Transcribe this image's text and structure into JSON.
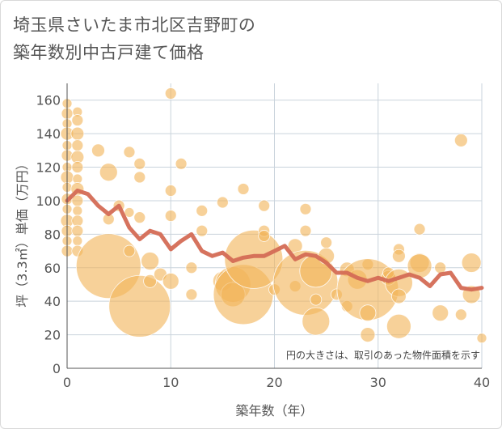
{
  "title": {
    "line1": "埼玉県さいたま市北区吉野町の",
    "line2": "築年数別中古戸建て価格"
  },
  "colors": {
    "bubble": "#f2b45a",
    "line": "#d46b55",
    "grid": "#c9d3dc",
    "text": "#555555"
  },
  "chart_data": {
    "type": "scatter",
    "xlabel": "築年数（年）",
    "ylabel": "坪（3.3㎡）単価（万円）",
    "xlim": [
      0,
      40
    ],
    "ylim": [
      0,
      170
    ],
    "xticks": [
      0,
      10,
      20,
      30,
      40
    ],
    "yticks": [
      0,
      20,
      40,
      60,
      80,
      100,
      120,
      140,
      160
    ],
    "grid": true,
    "annotation": "円の大きさは、取引のあった物件面積を示す",
    "series": [
      {
        "kind": "bubble",
        "points": [
          {
            "x": 0,
            "y": 158,
            "s": 6
          },
          {
            "x": 0,
            "y": 152,
            "s": 7
          },
          {
            "x": 0,
            "y": 146,
            "s": 6
          },
          {
            "x": 0,
            "y": 140,
            "s": 8
          },
          {
            "x": 0,
            "y": 133,
            "s": 6
          },
          {
            "x": 0,
            "y": 127,
            "s": 7
          },
          {
            "x": 0,
            "y": 120,
            "s": 6
          },
          {
            "x": 0,
            "y": 114,
            "s": 8
          },
          {
            "x": 0,
            "y": 108,
            "s": 6
          },
          {
            "x": 0,
            "y": 101,
            "s": 7
          },
          {
            "x": 0,
            "y": 95,
            "s": 6
          },
          {
            "x": 0,
            "y": 88,
            "s": 8
          },
          {
            "x": 0,
            "y": 82,
            "s": 7
          },
          {
            "x": 0,
            "y": 76,
            "s": 6
          },
          {
            "x": 0,
            "y": 70,
            "s": 7
          },
          {
            "x": 1,
            "y": 153,
            "s": 6
          },
          {
            "x": 1,
            "y": 148,
            "s": 7
          },
          {
            "x": 1,
            "y": 140,
            "s": 8
          },
          {
            "x": 1,
            "y": 133,
            "s": 7
          },
          {
            "x": 1,
            "y": 126,
            "s": 8
          },
          {
            "x": 1,
            "y": 120,
            "s": 7
          },
          {
            "x": 1,
            "y": 113,
            "s": 6
          },
          {
            "x": 1,
            "y": 107,
            "s": 8
          },
          {
            "x": 1,
            "y": 100,
            "s": 7
          },
          {
            "x": 1,
            "y": 94,
            "s": 6
          },
          {
            "x": 1,
            "y": 88,
            "s": 7
          },
          {
            "x": 1,
            "y": 82,
            "s": 7
          },
          {
            "x": 1,
            "y": 76,
            "s": 6
          },
          {
            "x": 1,
            "y": 70,
            "s": 7
          },
          {
            "x": 3,
            "y": 130,
            "s": 8
          },
          {
            "x": 4,
            "y": 117,
            "s": 11
          },
          {
            "x": 4,
            "y": 89,
            "s": 7
          },
          {
            "x": 4,
            "y": 61,
            "s": 40
          },
          {
            "x": 5,
            "y": 97,
            "s": 7
          },
          {
            "x": 6,
            "y": 129,
            "s": 7
          },
          {
            "x": 6,
            "y": 93,
            "s": 6
          },
          {
            "x": 6,
            "y": 70,
            "s": 7
          },
          {
            "x": 7,
            "y": 122,
            "s": 7
          },
          {
            "x": 7,
            "y": 114,
            "s": 7
          },
          {
            "x": 7,
            "y": 90,
            "s": 7
          },
          {
            "x": 7,
            "y": 37,
            "s": 38
          },
          {
            "x": 8,
            "y": 64,
            "s": 11
          },
          {
            "x": 8,
            "y": 52,
            "s": 8
          },
          {
            "x": 9,
            "y": 56,
            "s": 8
          },
          {
            "x": 10,
            "y": 164,
            "s": 7
          },
          {
            "x": 10,
            "y": 106,
            "s": 7
          },
          {
            "x": 10,
            "y": 91,
            "s": 7
          },
          {
            "x": 10,
            "y": 52,
            "s": 10
          },
          {
            "x": 11,
            "y": 122,
            "s": 7
          },
          {
            "x": 12,
            "y": 60,
            "s": 7
          },
          {
            "x": 12,
            "y": 44,
            "s": 7
          },
          {
            "x": 13,
            "y": 94,
            "s": 7
          },
          {
            "x": 13,
            "y": 82,
            "s": 7
          },
          {
            "x": 15,
            "y": 99,
            "s": 7
          },
          {
            "x": 15,
            "y": 52,
            "s": 12
          },
          {
            "x": 16,
            "y": 50,
            "s": 22
          },
          {
            "x": 16,
            "y": 44,
            "s": 15
          },
          {
            "x": 17,
            "y": 107,
            "s": 7
          },
          {
            "x": 17,
            "y": 44,
            "s": 37
          },
          {
            "x": 18,
            "y": 65,
            "s": 36
          },
          {
            "x": 19,
            "y": 97,
            "s": 7
          },
          {
            "x": 19,
            "y": 82,
            "s": 7
          },
          {
            "x": 19,
            "y": 79,
            "s": 7
          },
          {
            "x": 20,
            "y": 47,
            "s": 7
          },
          {
            "x": 22,
            "y": 49,
            "s": 7
          },
          {
            "x": 22,
            "y": 73,
            "s": 9
          },
          {
            "x": 23,
            "y": 95,
            "s": 7
          },
          {
            "x": 23,
            "y": 82,
            "s": 7
          },
          {
            "x": 23,
            "y": 51,
            "s": 40
          },
          {
            "x": 24,
            "y": 58,
            "s": 20
          },
          {
            "x": 24,
            "y": 41,
            "s": 7
          },
          {
            "x": 24,
            "y": 28,
            "s": 17
          },
          {
            "x": 25,
            "y": 75,
            "s": 7
          },
          {
            "x": 25,
            "y": 67,
            "s": 10
          },
          {
            "x": 26,
            "y": 44,
            "s": 7
          },
          {
            "x": 27,
            "y": 59,
            "s": 9
          },
          {
            "x": 27,
            "y": 37,
            "s": 7
          },
          {
            "x": 28,
            "y": 53,
            "s": 12
          },
          {
            "x": 29,
            "y": 62,
            "s": 7
          },
          {
            "x": 29,
            "y": 47,
            "s": 38
          },
          {
            "x": 29,
            "y": 33,
            "s": 10
          },
          {
            "x": 29,
            "y": 20,
            "s": 9
          },
          {
            "x": 31,
            "y": 54,
            "s": 9
          },
          {
            "x": 31,
            "y": 57,
            "s": 7
          },
          {
            "x": 32,
            "y": 71,
            "s": 7
          },
          {
            "x": 32,
            "y": 67,
            "s": 8
          },
          {
            "x": 32,
            "y": 51,
            "s": 17
          },
          {
            "x": 32,
            "y": 43,
            "s": 9
          },
          {
            "x": 32,
            "y": 25,
            "s": 15
          },
          {
            "x": 34,
            "y": 83,
            "s": 7
          },
          {
            "x": 34,
            "y": 63,
            "s": 12
          },
          {
            "x": 34,
            "y": 61,
            "s": 15
          },
          {
            "x": 36,
            "y": 33,
            "s": 10
          },
          {
            "x": 36,
            "y": 60,
            "s": 7
          },
          {
            "x": 38,
            "y": 136,
            "s": 8
          },
          {
            "x": 38,
            "y": 32,
            "s": 7
          },
          {
            "x": 39,
            "y": 63,
            "s": 12
          },
          {
            "x": 39,
            "y": 44,
            "s": 11
          },
          {
            "x": 40,
            "y": 18,
            "s": 6
          }
        ]
      },
      {
        "kind": "line",
        "points": [
          {
            "x": 0,
            "y": 100
          },
          {
            "x": 1,
            "y": 106
          },
          {
            "x": 2,
            "y": 104
          },
          {
            "x": 3,
            "y": 97
          },
          {
            "x": 4,
            "y": 92
          },
          {
            "x": 5,
            "y": 97
          },
          {
            "x": 6,
            "y": 84
          },
          {
            "x": 7,
            "y": 77
          },
          {
            "x": 8,
            "y": 82
          },
          {
            "x": 9,
            "y": 80
          },
          {
            "x": 10,
            "y": 71
          },
          {
            "x": 11,
            "y": 76
          },
          {
            "x": 12,
            "y": 80
          },
          {
            "x": 13,
            "y": 70
          },
          {
            "x": 14,
            "y": 67
          },
          {
            "x": 15,
            "y": 69
          },
          {
            "x": 16,
            "y": 64
          },
          {
            "x": 17,
            "y": 66
          },
          {
            "x": 18,
            "y": 67
          },
          {
            "x": 19,
            "y": 67
          },
          {
            "x": 20,
            "y": 70
          },
          {
            "x": 21,
            "y": 73
          },
          {
            "x": 22,
            "y": 65
          },
          {
            "x": 23,
            "y": 68
          },
          {
            "x": 24,
            "y": 67
          },
          {
            "x": 25,
            "y": 63
          },
          {
            "x": 26,
            "y": 57
          },
          {
            "x": 27,
            "y": 57
          },
          {
            "x": 28,
            "y": 54
          },
          {
            "x": 29,
            "y": 52
          },
          {
            "x": 30,
            "y": 54
          },
          {
            "x": 31,
            "y": 52
          },
          {
            "x": 32,
            "y": 54
          },
          {
            "x": 33,
            "y": 56
          },
          {
            "x": 34,
            "y": 54
          },
          {
            "x": 35,
            "y": 49
          },
          {
            "x": 36,
            "y": 56
          },
          {
            "x": 37,
            "y": 57
          },
          {
            "x": 38,
            "y": 48
          },
          {
            "x": 39,
            "y": 47
          },
          {
            "x": 40,
            "y": 48
          }
        ]
      }
    ]
  }
}
